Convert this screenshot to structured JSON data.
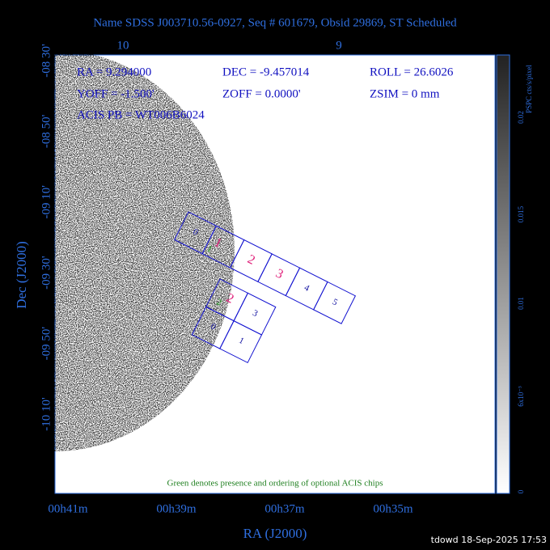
{
  "header": {
    "title": "Name SDSS J003710.56-0927, Seq # 601679, Obsid 29869, ST Scheduled"
  },
  "axes": {
    "top_ticks": [
      "10",
      "9"
    ],
    "left_ticks": [
      "-08 30'",
      "-08 50'",
      "-09 10'",
      "-09 30'",
      "-09 50'",
      "-10 10'"
    ],
    "bottom_ticks": [
      "00h41m",
      "00h39m",
      "00h37m",
      "00h35m"
    ],
    "x_label": "RA (J2000)",
    "y_label": "Dec (J2000)"
  },
  "info": [
    [
      "RA = 9.294000",
      "DEC = -9.457014",
      "ROLL = 26.6026"
    ],
    [
      "YOFF = -1.500'",
      "ZOFF = 0.0000'",
      "ZSIM = 0 mm"
    ],
    [
      "ACIS PB = WT006B6024"
    ]
  ],
  "chips": {
    "s_array": [
      "0",
      "1",
      "2",
      "3",
      "4",
      "5"
    ],
    "s_marks": [
      "1",
      "1",
      "2",
      "3"
    ],
    "i_array": [
      "2",
      "3",
      "0",
      "1"
    ],
    "i_marks": [
      "2",
      "2"
    ]
  },
  "note": "Green denotes presence and ordering of optional ACIS chips",
  "colorbar": {
    "unit": "PSPC cts/s/pixel",
    "ticks": [
      "0.02",
      "0.015",
      "0.01",
      "6x10⁻³",
      "0"
    ]
  },
  "footer": "tdowd 18-Sep-2025 17:53"
}
